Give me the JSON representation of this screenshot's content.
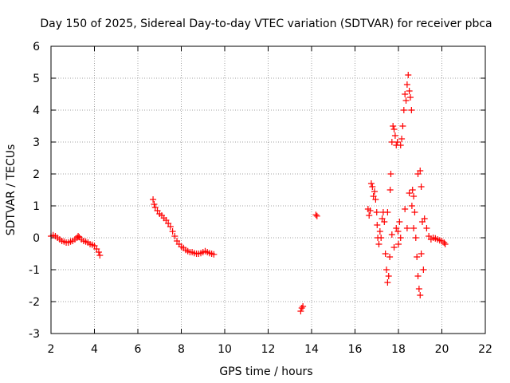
{
  "chart_data": {
    "type": "scatter",
    "title": "Day 150 of 2025, Sidereal Day-to-day VTEC variation (SDTVAR) for receiver pbca",
    "xlabel": "GPS time / hours",
    "ylabel": "SDTVAR / TECUs",
    "xlim": [
      2,
      22
    ],
    "ylim": [
      -3,
      6
    ],
    "xticks": [
      2,
      4,
      6,
      8,
      10,
      12,
      14,
      16,
      18,
      20,
      22
    ],
    "yticks": [
      -3,
      -2,
      -1,
      0,
      1,
      2,
      3,
      4,
      5,
      6
    ],
    "grid": true,
    "marker": "plus",
    "series": [
      {
        "name": "SDTVAR",
        "color": "#ff0000",
        "points": [
          [
            2.0,
            0.05
          ],
          [
            2.1,
            0.08
          ],
          [
            2.2,
            0.05
          ],
          [
            2.3,
            0.0
          ],
          [
            2.4,
            -0.05
          ],
          [
            2.5,
            -0.1
          ],
          [
            2.6,
            -0.12
          ],
          [
            2.7,
            -0.15
          ],
          [
            2.8,
            -0.15
          ],
          [
            2.9,
            -0.12
          ],
          [
            3.0,
            -0.1
          ],
          [
            3.1,
            -0.05
          ],
          [
            3.2,
            0.0
          ],
          [
            3.25,
            0.05
          ],
          [
            3.3,
            0.02
          ],
          [
            3.4,
            -0.05
          ],
          [
            3.5,
            -0.1
          ],
          [
            3.6,
            -0.12
          ],
          [
            3.7,
            -0.15
          ],
          [
            3.8,
            -0.2
          ],
          [
            3.9,
            -0.22
          ],
          [
            4.0,
            -0.25
          ],
          [
            4.1,
            -0.35
          ],
          [
            4.2,
            -0.45
          ],
          [
            4.25,
            -0.55
          ],
          [
            6.7,
            1.2
          ],
          [
            6.75,
            1.05
          ],
          [
            6.8,
            0.95
          ],
          [
            6.9,
            0.85
          ],
          [
            7.0,
            0.75
          ],
          [
            7.1,
            0.7
          ],
          [
            7.2,
            0.62
          ],
          [
            7.3,
            0.55
          ],
          [
            7.4,
            0.45
          ],
          [
            7.5,
            0.35
          ],
          [
            7.6,
            0.2
          ],
          [
            7.7,
            0.05
          ],
          [
            7.8,
            -0.1
          ],
          [
            7.9,
            -0.2
          ],
          [
            8.0,
            -0.28
          ],
          [
            8.1,
            -0.32
          ],
          [
            8.2,
            -0.38
          ],
          [
            8.3,
            -0.42
          ],
          [
            8.4,
            -0.45
          ],
          [
            8.5,
            -0.45
          ],
          [
            8.6,
            -0.48
          ],
          [
            8.7,
            -0.5
          ],
          [
            8.8,
            -0.5
          ],
          [
            8.9,
            -0.48
          ],
          [
            9.0,
            -0.45
          ],
          [
            9.1,
            -0.42
          ],
          [
            9.2,
            -0.45
          ],
          [
            9.3,
            -0.48
          ],
          [
            9.4,
            -0.5
          ],
          [
            9.5,
            -0.52
          ],
          [
            13.5,
            -2.3
          ],
          [
            13.55,
            -2.2
          ],
          [
            13.6,
            -2.15
          ],
          [
            14.2,
            0.72
          ],
          [
            14.25,
            0.68
          ],
          [
            16.6,
            0.9
          ],
          [
            16.65,
            0.7
          ],
          [
            16.7,
            0.85
          ],
          [
            16.75,
            1.7
          ],
          [
            16.8,
            1.6
          ],
          [
            16.85,
            1.3
          ],
          [
            16.9,
            1.45
          ],
          [
            16.95,
            1.2
          ],
          [
            17.0,
            0.8
          ],
          [
            17.02,
            0.4
          ],
          [
            17.05,
            0.0
          ],
          [
            17.1,
            -0.2
          ],
          [
            17.15,
            0.2
          ],
          [
            17.2,
            0.0
          ],
          [
            17.25,
            0.6
          ],
          [
            17.3,
            0.8
          ],
          [
            17.35,
            0.5
          ],
          [
            17.4,
            -0.5
          ],
          [
            17.45,
            -1.0
          ],
          [
            17.5,
            -1.4
          ],
          [
            17.55,
            -1.2
          ],
          [
            17.6,
            -0.6
          ],
          [
            17.62,
            1.5
          ],
          [
            17.65,
            2.0
          ],
          [
            17.7,
            3.0
          ],
          [
            17.75,
            3.5
          ],
          [
            17.8,
            3.4
          ],
          [
            17.85,
            3.2
          ],
          [
            17.9,
            2.9
          ],
          [
            17.95,
            3.0
          ],
          [
            17.98,
            0.2
          ],
          [
            18.0,
            -0.2
          ],
          [
            18.05,
            0.5
          ],
          [
            18.1,
            2.9
          ],
          [
            18.15,
            3.1
          ],
          [
            18.2,
            3.5
          ],
          [
            18.25,
            4.0
          ],
          [
            18.3,
            4.5
          ],
          [
            18.35,
            4.3
          ],
          [
            18.4,
            4.8
          ],
          [
            18.45,
            5.1
          ],
          [
            18.5,
            4.6
          ],
          [
            18.55,
            4.4
          ],
          [
            18.6,
            4.0
          ],
          [
            18.62,
            1.0
          ],
          [
            18.65,
            1.5
          ],
          [
            18.7,
            1.3
          ],
          [
            18.75,
            0.8
          ],
          [
            18.8,
            0.0
          ],
          [
            18.85,
            -0.6
          ],
          [
            18.9,
            -1.2
          ],
          [
            18.95,
            -1.6
          ],
          [
            19.0,
            -1.8
          ],
          [
            19.05,
            -0.5
          ],
          [
            19.1,
            0.5
          ],
          [
            19.15,
            -1.0
          ],
          [
            17.7,
            0.1
          ],
          [
            17.9,
            0.3
          ],
          [
            18.3,
            0.9
          ],
          [
            18.5,
            1.4
          ],
          [
            18.7,
            0.3
          ],
          [
            18.9,
            2.0
          ],
          [
            19.0,
            2.1
          ],
          [
            19.05,
            1.6
          ],
          [
            17.5,
            0.8
          ],
          [
            17.8,
            -0.3
          ],
          [
            18.1,
            0.0
          ],
          [
            18.4,
            0.3
          ],
          [
            19.2,
            0.6
          ],
          [
            19.3,
            0.3
          ],
          [
            19.4,
            0.05
          ],
          [
            19.5,
            -0.05
          ],
          [
            19.6,
            0.0
          ],
          [
            19.7,
            -0.02
          ],
          [
            19.8,
            -0.05
          ],
          [
            19.9,
            -0.08
          ],
          [
            20.0,
            -0.1
          ],
          [
            20.1,
            -0.15
          ],
          [
            20.15,
            -0.2
          ]
        ]
      }
    ]
  }
}
